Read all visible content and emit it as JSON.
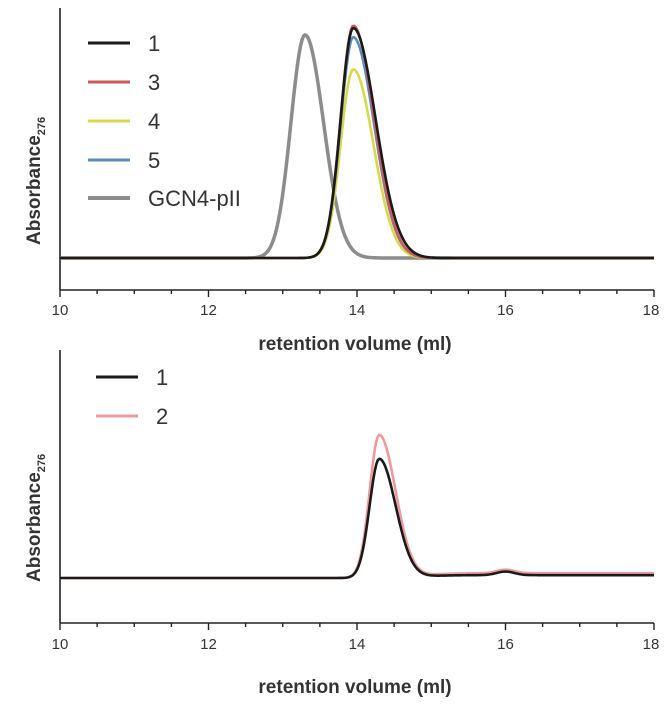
{
  "chart_data": [
    {
      "type": "line",
      "xlabel": "retention volume (ml)",
      "ylabel": "Absorbance",
      "ylabel_sub": "276",
      "xlim": [
        10,
        18
      ],
      "ylim": [
        0,
        1.08
      ],
      "xticks": [
        "10",
        "12",
        "14",
        "16",
        "18"
      ],
      "legend_position": "top-left",
      "grid": false,
      "series": [
        {
          "name": "1",
          "color": "#1a1a1a",
          "peak_x": 13.95,
          "height": 1.0,
          "sigma_left": 0.17,
          "sigma_right": 0.3
        },
        {
          "name": "3",
          "color": "#cc5a5a",
          "peak_x": 13.95,
          "height": 1.01,
          "sigma_left": 0.17,
          "sigma_right": 0.28
        },
        {
          "name": "4",
          "color": "#d8d84a",
          "peak_x": 13.95,
          "height": 0.82,
          "sigma_left": 0.17,
          "sigma_right": 0.27
        },
        {
          "name": "5",
          "color": "#5a8cc0",
          "peak_x": 13.95,
          "height": 0.96,
          "sigma_left": 0.17,
          "sigma_right": 0.28
        },
        {
          "name": "GCN4-pII",
          "color": "#8c8c8c",
          "peak_x": 13.3,
          "height": 0.97,
          "sigma_left": 0.19,
          "sigma_right": 0.25
        }
      ]
    },
    {
      "type": "line",
      "xlabel": "retention volume (ml)",
      "ylabel": "Absorbance",
      "ylabel_sub": "276",
      "xlim": [
        10,
        18
      ],
      "ylim": [
        -0.25,
        0.75
      ],
      "xticks": [
        "10",
        "12",
        "14",
        "16",
        "18"
      ],
      "legend_position": "top-left",
      "grid": false,
      "series": [
        {
          "name": "1",
          "color": "#1a1a1a",
          "peak_x": 14.3,
          "height": 0.5,
          "sigma_left": 0.13,
          "sigma_right": 0.22,
          "tail": 0.012,
          "bump_x": 16.0,
          "bump_h": 0.015
        },
        {
          "name": "2",
          "color": "#ee9a9a",
          "peak_x": 14.3,
          "height": 0.6,
          "sigma_left": 0.13,
          "sigma_right": 0.22,
          "tail": 0.02,
          "bump_x": 16.0,
          "bump_h": 0.015
        }
      ]
    }
  ]
}
